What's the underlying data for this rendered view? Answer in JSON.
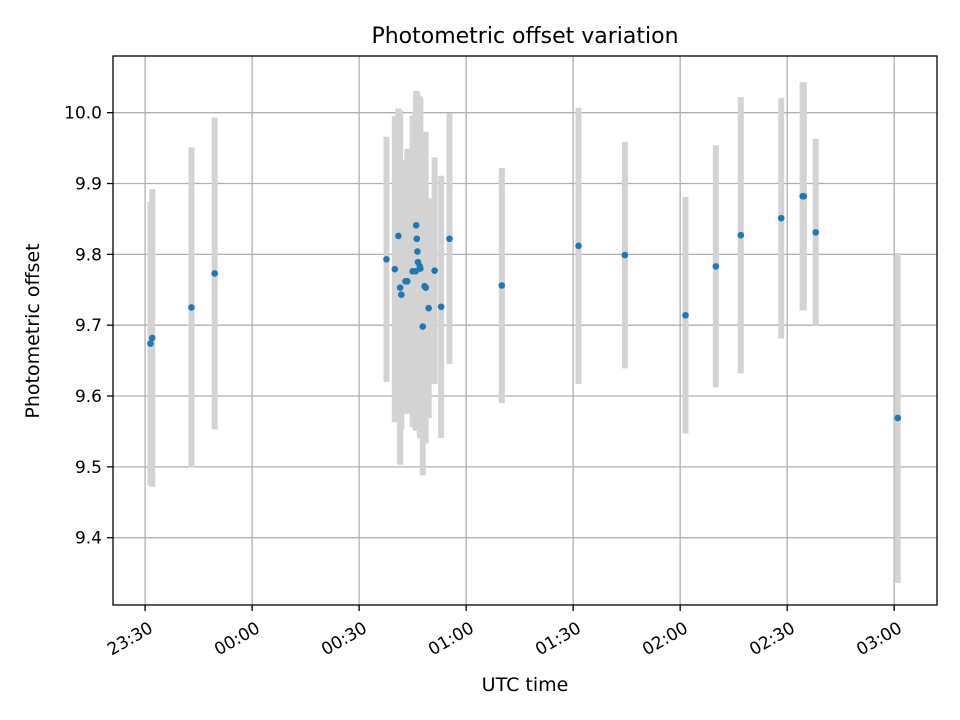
{
  "chart_data": {
    "type": "scatter",
    "title": "Photometric offset variation",
    "xlabel": "UTC time",
    "ylabel": "Photometric offset",
    "x_axis_kind": "time",
    "xlim": [
      "23:21",
      "03:12"
    ],
    "ylim": [
      9.305,
      10.08
    ],
    "x_ticks": [
      "23:30",
      "00:00",
      "00:30",
      "01:00",
      "01:30",
      "02:00",
      "02:30",
      "03:00"
    ],
    "y_ticks": [
      "9.4",
      "9.5",
      "9.6",
      "9.7",
      "9.8",
      "9.9",
      "10.0"
    ],
    "grid": true,
    "legend": "none",
    "colors": {
      "point": "#1f77b4",
      "errorbar": "#d3d3d3",
      "grid": "#b0b0b0"
    },
    "series": [
      {
        "points": [
          {
            "x": "23:31:30",
            "y": 9.674,
            "err": 0.2
          },
          {
            "x": "23:32:00",
            "y": 9.682,
            "err": 0.21
          },
          {
            "x": "23:43:00",
            "y": 9.725,
            "err": 0.226
          },
          {
            "x": "23:49:30",
            "y": 9.773,
            "err": 0.22
          },
          {
            "x": "00:37:40",
            "y": 9.793,
            "err": 0.173
          },
          {
            "x": "00:40:00",
            "y": 9.779,
            "err": 0.216
          },
          {
            "x": "00:41:00",
            "y": 9.826,
            "err": 0.18
          },
          {
            "x": "00:41:30",
            "y": 9.753,
            "err": 0.25
          },
          {
            "x": "00:41:50",
            "y": 9.743,
            "err": 0.19
          },
          {
            "x": "00:43:00",
            "y": 9.762,
            "err": 0.17
          },
          {
            "x": "00:43:30",
            "y": 9.762,
            "err": 0.187
          },
          {
            "x": "00:45:00",
            "y": 9.776,
            "err": 0.22
          },
          {
            "x": "00:45:50",
            "y": 9.776,
            "err": 0.225
          },
          {
            "x": "00:46:00",
            "y": 9.841,
            "err": 0.19
          },
          {
            "x": "00:46:10",
            "y": 9.822,
            "err": 0.19
          },
          {
            "x": "00:46:20",
            "y": 9.804,
            "err": 0.225
          },
          {
            "x": "00:46:30",
            "y": 9.789,
            "err": 0.215
          },
          {
            "x": "00:47:00",
            "y": 9.783,
            "err": 0.24
          },
          {
            "x": "00:47:10",
            "y": 9.78,
            "err": 0.24
          },
          {
            "x": "00:47:50",
            "y": 9.698,
            "err": 0.21
          },
          {
            "x": "00:48:20",
            "y": 9.755,
            "err": 0.215
          },
          {
            "x": "00:48:40",
            "y": 9.753,
            "err": 0.22
          },
          {
            "x": "00:49:30",
            "y": 9.724,
            "err": 0.155
          },
          {
            "x": "00:51:10",
            "y": 9.777,
            "err": 0.16
          },
          {
            "x": "00:53:00",
            "y": 9.726,
            "err": 0.185
          },
          {
            "x": "00:55:20",
            "y": 9.822,
            "err": 0.177
          },
          {
            "x": "01:10:00",
            "y": 9.756,
            "err": 0.166
          },
          {
            "x": "01:31:30",
            "y": 9.812,
            "err": 0.195
          },
          {
            "x": "01:44:30",
            "y": 9.799,
            "err": 0.16
          },
          {
            "x": "02:01:30",
            "y": 9.714,
            "err": 0.167
          },
          {
            "x": "02:10:00",
            "y": 9.783,
            "err": 0.171
          },
          {
            "x": "02:17:00",
            "y": 9.827,
            "err": 0.195
          },
          {
            "x": "02:28:20",
            "y": 9.851,
            "err": 0.17
          },
          {
            "x": "02:34:20",
            "y": 9.882,
            "err": 0.161
          },
          {
            "x": "02:34:40",
            "y": 9.882,
            "err": 0.161
          },
          {
            "x": "02:38:00",
            "y": 9.831,
            "err": 0.132
          },
          {
            "x": "03:01:00",
            "y": 9.569,
            "err": 0.233
          }
        ]
      }
    ]
  }
}
